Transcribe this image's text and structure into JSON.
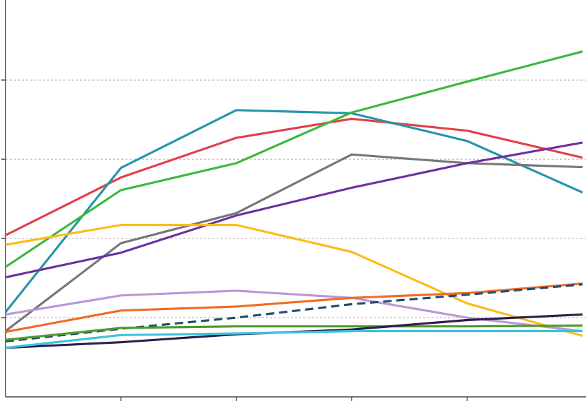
{
  "chart_data": {
    "type": "line",
    "categories": [
      null,
      null,
      null,
      null,
      null,
      null
    ],
    "ylim": [
      0,
      5.01
    ],
    "yticks": [
      1,
      2,
      3,
      4
    ],
    "grid": true,
    "series": [
      {
        "color": "#e2404a",
        "values": [
          2.04,
          2.77,
          3.27,
          3.51,
          3.36,
          3.02
        ]
      },
      {
        "color": "#2596a8",
        "values": [
          1.07,
          2.89,
          3.62,
          3.58,
          3.23,
          2.58
        ]
      },
      {
        "color": "#3cb83c",
        "values": [
          1.64,
          2.61,
          2.95,
          3.59,
          3.98,
          4.36
        ]
      },
      {
        "color": "#777777",
        "values": [
          0.83,
          1.94,
          2.32,
          3.06,
          2.95,
          2.9
        ]
      },
      {
        "color": "#7030a0",
        "values": [
          1.51,
          1.82,
          2.29,
          2.64,
          2.95,
          3.21
        ]
      },
      {
        "color": "#fbbc1c",
        "values": [
          1.92,
          2.17,
          2.17,
          1.83,
          1.18,
          0.77
        ]
      },
      {
        "color": "#b898d8",
        "values": [
          1.04,
          1.28,
          1.34,
          1.25,
          1.0,
          0.83
        ]
      },
      {
        "color": "#f26a24",
        "values": [
          0.82,
          1.09,
          1.14,
          1.25,
          1.31,
          1.43
        ]
      },
      {
        "color": "#1f4e6e",
        "dash": true,
        "values": [
          0.7,
          0.86,
          1.0,
          1.17,
          1.29,
          1.42
        ]
      },
      {
        "color": "#4e9a2a",
        "values": [
          0.72,
          0.87,
          0.89,
          0.89,
          0.89,
          0.9
        ]
      },
      {
        "color": "#2a1f4e",
        "values": [
          0.62,
          0.69,
          0.79,
          0.85,
          0.97,
          1.04
        ]
      },
      {
        "color": "#3cc4dc",
        "values": [
          0.62,
          0.78,
          0.8,
          0.83,
          0.83,
          0.83
        ]
      }
    ]
  }
}
